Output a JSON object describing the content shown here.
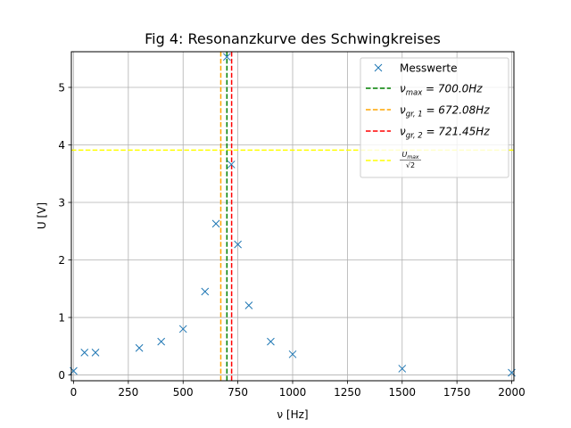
{
  "chart_data": {
    "type": "scatter",
    "title": "Fig 4: Resonanzkurve des Schwingkreises",
    "xlabel": "ν [Hz]",
    "ylabel": "U [V]",
    "xlim": [
      -10,
      2010
    ],
    "ylim": [
      -0.1,
      5.62
    ],
    "xticks": [
      0,
      250,
      500,
      750,
      1000,
      1250,
      1500,
      1750,
      2000
    ],
    "yticks": [
      0,
      1,
      2,
      3,
      4,
      5
    ],
    "grid": true,
    "legend_position": "top-right",
    "series": [
      {
        "name": "Messwerte",
        "marker": "x",
        "color": "#1f77b4",
        "x": [
          0,
          50,
          100,
          300,
          400,
          500,
          600,
          650,
          700,
          720,
          750,
          800,
          900,
          1000,
          1500,
          2000
        ],
        "y": [
          0.07,
          0.39,
          0.39,
          0.47,
          0.58,
          0.8,
          1.45,
          2.63,
          5.53,
          3.66,
          2.27,
          1.21,
          0.58,
          0.36,
          0.11,
          0.04
        ]
      }
    ],
    "vlines": [
      {
        "name_base": "ν",
        "name_sub": "max",
        "name_value": " = 700.0Hz",
        "x": 700.0,
        "color": "#008000"
      },
      {
        "name_base": "ν",
        "name_sub": "gr, 1",
        "name_value": " = 672.08Hz",
        "x": 672.08,
        "color": "#ffa500"
      },
      {
        "name_base": "ν",
        "name_sub": "gr, 2",
        "name_value": " = 721.45Hz",
        "x": 721.45,
        "color": "#ff0000"
      }
    ],
    "hlines": [
      {
        "name_num_base": "U",
        "name_num_sub": "max",
        "name_den": "√2",
        "y": 3.91,
        "color": "#ffff00"
      }
    ]
  }
}
